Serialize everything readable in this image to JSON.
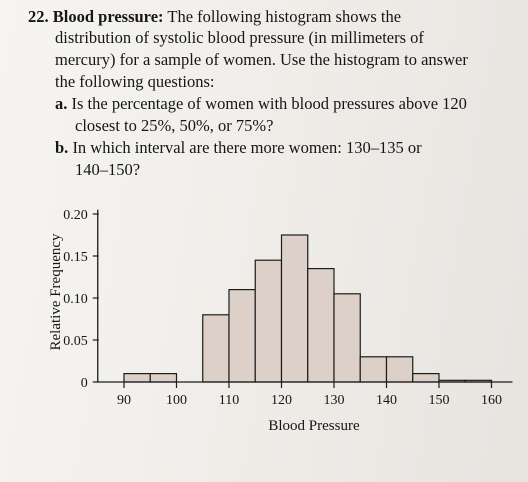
{
  "problem": {
    "number": "22.",
    "heading": "Blood pressure:",
    "intro_lines": [
      "The following histogram shows the",
      "distribution of systolic blood pressure (in millimeters of",
      "mercury) for a sample of women. Use the histogram to answer",
      "the following questions:"
    ],
    "parts": [
      {
        "label": "a.",
        "lines": [
          "Is the percentage of women with blood pressures above 120",
          "closest to 25%, 50%, or 75%?"
        ]
      },
      {
        "label": "b.",
        "lines": [
          "In which interval are there more women: 130–135 or",
          "140–150?"
        ]
      }
    ]
  },
  "chart_data": {
    "type": "bar",
    "subtype": "histogram",
    "xlabel": "Blood Pressure",
    "ylabel": "Relative Frequency",
    "xlim": [
      85,
      165
    ],
    "ylim": [
      0,
      0.2
    ],
    "x_ticks": [
      90,
      100,
      110,
      120,
      130,
      140,
      150,
      160
    ],
    "y_ticks": [
      0,
      0.05,
      0.1,
      0.15,
      0.2
    ],
    "y_tick_labels": [
      "0",
      "0.05",
      "0.10",
      "0.15",
      "0.20"
    ],
    "bin_width": 5,
    "bins": [
      {
        "start": 90,
        "end": 95,
        "value": 0.01
      },
      {
        "start": 95,
        "end": 100,
        "value": 0.01
      },
      {
        "start": 100,
        "end": 105,
        "value": 0.0
      },
      {
        "start": 105,
        "end": 110,
        "value": 0.08
      },
      {
        "start": 110,
        "end": 115,
        "value": 0.11
      },
      {
        "start": 115,
        "end": 120,
        "value": 0.145
      },
      {
        "start": 120,
        "end": 125,
        "value": 0.175
      },
      {
        "start": 125,
        "end": 130,
        "value": 0.135
      },
      {
        "start": 130,
        "end": 135,
        "value": 0.105
      },
      {
        "start": 135,
        "end": 140,
        "value": 0.03
      },
      {
        "start": 140,
        "end": 145,
        "value": 0.03
      },
      {
        "start": 145,
        "end": 150,
        "value": 0.01
      },
      {
        "start": 150,
        "end": 155,
        "value": 0.002
      },
      {
        "start": 155,
        "end": 160,
        "value": 0.002
      }
    ],
    "bar_color": "#ddd0c9",
    "edge_color": "#1c1c1c",
    "grid": false
  }
}
